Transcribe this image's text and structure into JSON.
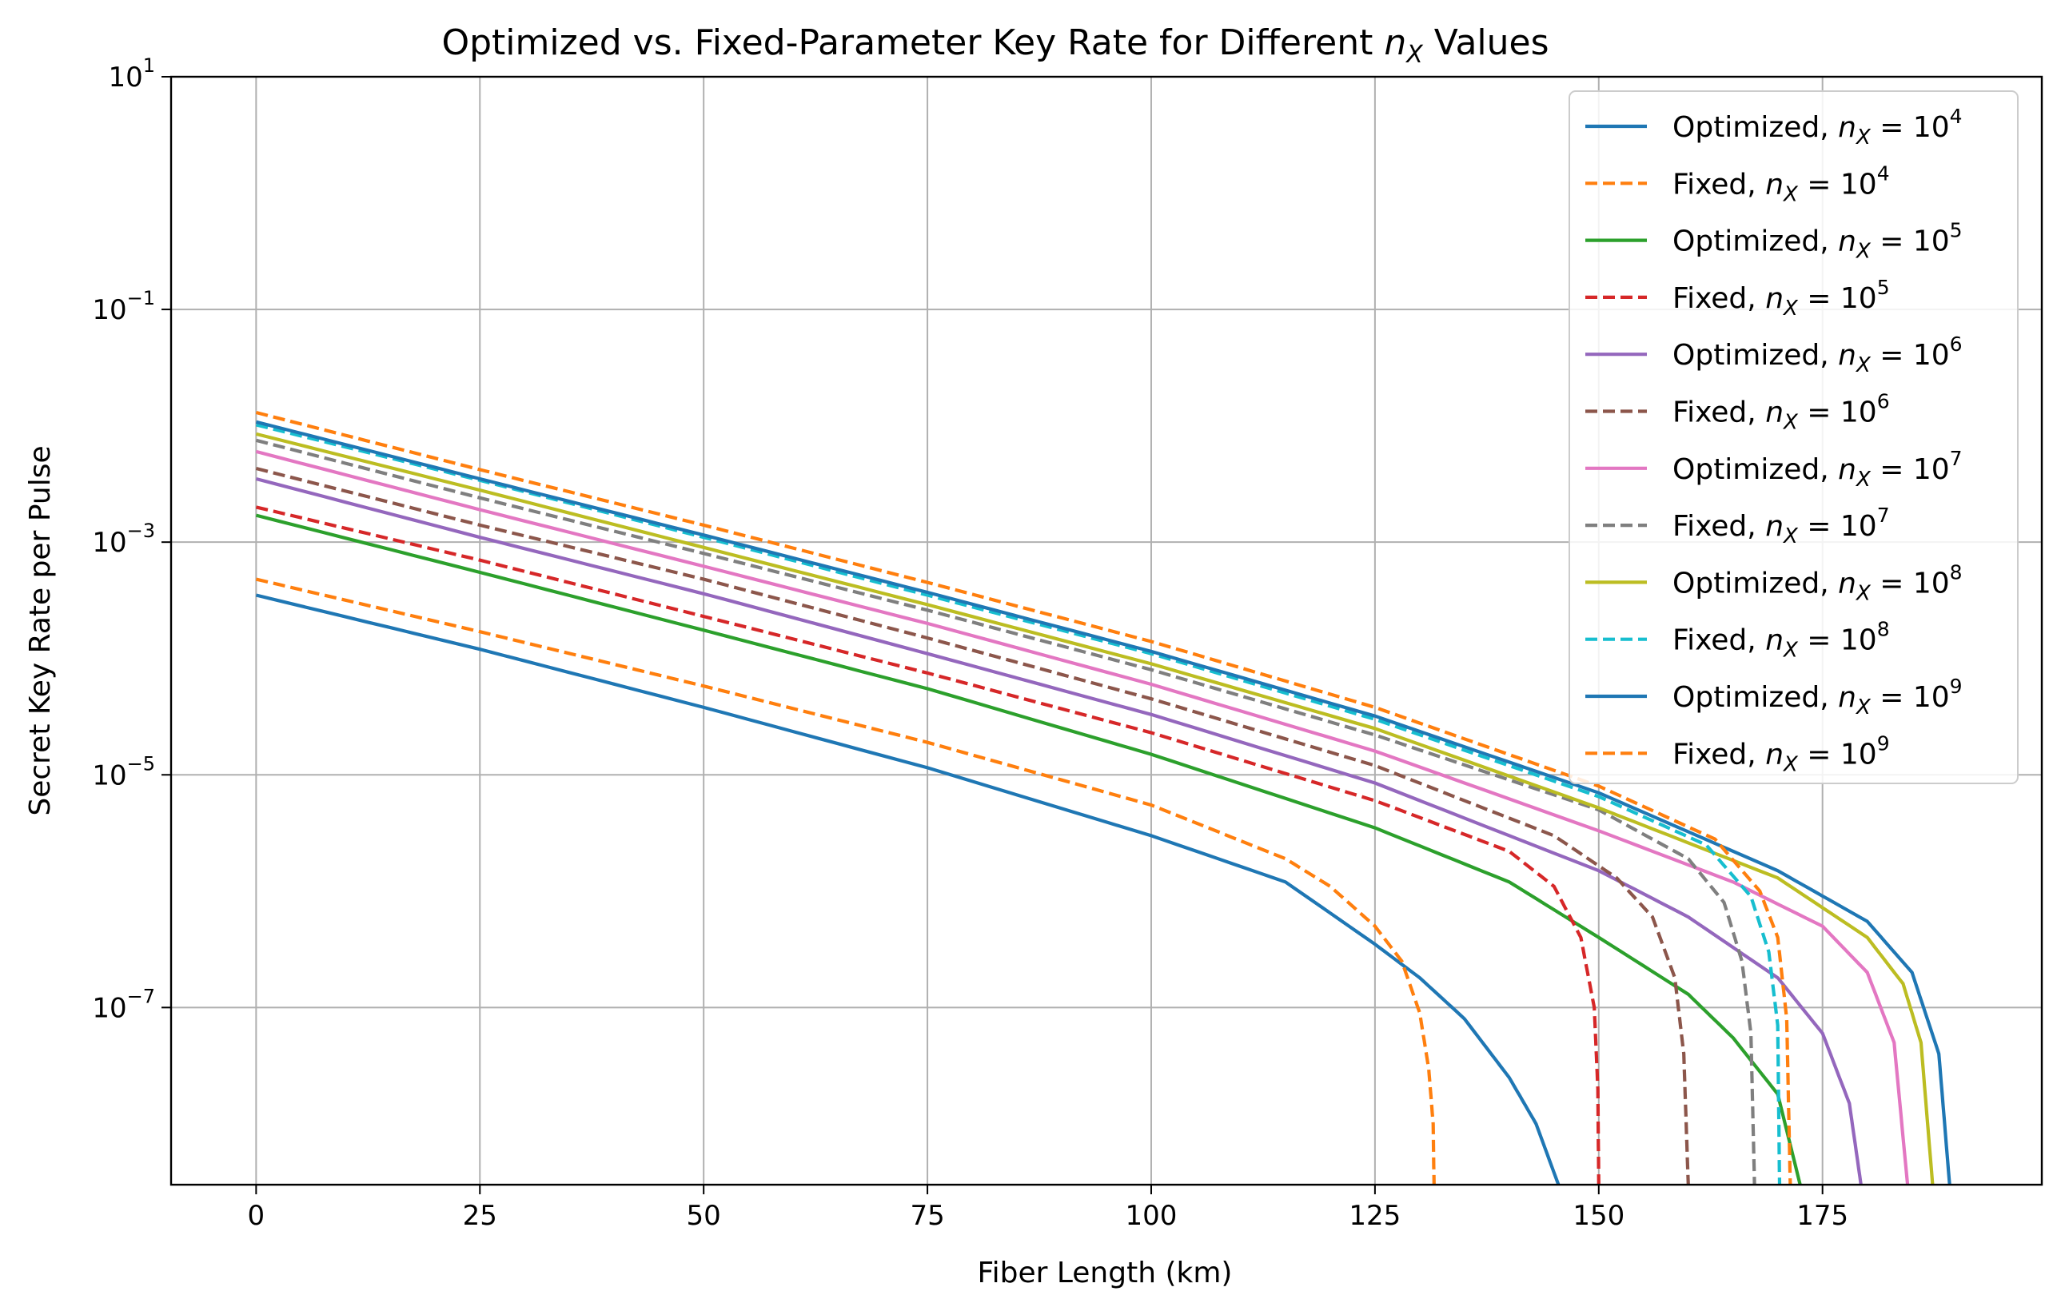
{
  "chart_data": {
    "type": "line",
    "title": "Optimized vs. Fixed-Parameter Key Rate for Different n_X Values",
    "title_parts": {
      "lead": "Optimized vs. Fixed-Parameter Key Rate for Different ",
      "symbol": "n",
      "subscript": "X",
      "tail": " Values"
    },
    "xlabel": "Fiber Length (km)",
    "ylabel": "Secret Key Rate per Pulse",
    "xlim": [
      -9.5,
      199.5
    ],
    "ylim": [
      3e-09,
      10
    ],
    "yscale": "log",
    "grid": true,
    "legend_position": "top-right",
    "x_ticks": [
      0,
      25,
      50,
      75,
      100,
      125,
      150,
      175
    ],
    "x_tick_labels": [
      "0",
      "25",
      "50",
      "75",
      "100",
      "125",
      "150",
      "175"
    ],
    "y_ticks": [
      {
        "value": 10,
        "base": "10",
        "exp": "1"
      },
      {
        "value": 0.1,
        "base": "10",
        "exp": "−1"
      },
      {
        "value": 0.001,
        "base": "10",
        "exp": "−3"
      },
      {
        "value": 1e-05,
        "base": "10",
        "exp": "−5"
      },
      {
        "value": 1e-07,
        "base": "10",
        "exp": "−7"
      }
    ],
    "series": [
      {
        "name": "Optimized, n_X = 10^4",
        "prefix": "Optimized, ",
        "exp": "4",
        "color": "#1f77b4",
        "dash": "solid",
        "points": [
          [
            0,
            0.00035
          ],
          [
            25,
            0.00012
          ],
          [
            50,
            3.8e-05
          ],
          [
            75,
            1.15e-05
          ],
          [
            100,
            3e-06
          ],
          [
            115,
            1.2e-06
          ],
          [
            125,
            3.5e-07
          ],
          [
            130,
            1.8e-07
          ],
          [
            135,
            8e-08
          ],
          [
            140,
            2.5e-08
          ],
          [
            143,
            1e-08
          ],
          [
            145.5,
            3e-09
          ]
        ]
      },
      {
        "name": "Fixed, n_X = 10^4",
        "prefix": "Fixed, ",
        "exp": "4",
        "color": "#ff7f0e",
        "dash": "dashed",
        "points": [
          [
            0,
            0.00048
          ],
          [
            25,
            0.00017
          ],
          [
            50,
            5.8e-05
          ],
          [
            75,
            1.9e-05
          ],
          [
            100,
            5.5e-06
          ],
          [
            115,
            1.9e-06
          ],
          [
            120,
            1.1e-06
          ],
          [
            125,
            5e-07
          ],
          [
            128,
            2.5e-07
          ],
          [
            130,
            9e-08
          ],
          [
            131,
            3e-08
          ],
          [
            131.5,
            1e-08
          ],
          [
            131.6,
            3e-09
          ]
        ]
      },
      {
        "name": "Optimized, n_X = 10^5",
        "prefix": "Optimized, ",
        "exp": "5",
        "color": "#2ca02c",
        "dash": "solid",
        "points": [
          [
            0,
            0.0017
          ],
          [
            25,
            0.00055
          ],
          [
            50,
            0.000175
          ],
          [
            75,
            5.5e-05
          ],
          [
            100,
            1.5e-05
          ],
          [
            125,
            3.5e-06
          ],
          [
            140,
            1.2e-06
          ],
          [
            150,
            4e-07
          ],
          [
            160,
            1.3e-07
          ],
          [
            165,
            5.5e-08
          ],
          [
            170,
            1.8e-08
          ],
          [
            172.5,
            3e-09
          ]
        ]
      },
      {
        "name": "Fixed, n_X = 10^5",
        "prefix": "Fixed, ",
        "exp": "5",
        "color": "#d62728",
        "dash": "dashed",
        "points": [
          [
            0,
            0.002
          ],
          [
            25,
            0.0007
          ],
          [
            50,
            0.00023
          ],
          [
            75,
            7.5e-05
          ],
          [
            100,
            2.3e-05
          ],
          [
            125,
            6e-06
          ],
          [
            140,
            2.2e-06
          ],
          [
            145,
            1.1e-06
          ],
          [
            148,
            4e-07
          ],
          [
            149.5,
            1e-07
          ],
          [
            149.9,
            2e-08
          ],
          [
            150,
            3e-09
          ]
        ]
      },
      {
        "name": "Optimized, n_X = 10^6",
        "prefix": "Optimized, ",
        "exp": "6",
        "color": "#9467bd",
        "dash": "solid",
        "points": [
          [
            0,
            0.0035
          ],
          [
            25,
            0.0011
          ],
          [
            50,
            0.00036
          ],
          [
            75,
            0.00011
          ],
          [
            100,
            3.3e-05
          ],
          [
            125,
            8.5e-06
          ],
          [
            150,
            1.5e-06
          ],
          [
            160,
            6e-07
          ],
          [
            170,
            1.8e-07
          ],
          [
            175,
            6e-08
          ],
          [
            178,
            1.5e-08
          ],
          [
            179.3,
            3e-09
          ]
        ]
      },
      {
        "name": "Fixed, n_X = 10^6",
        "prefix": "Fixed, ",
        "exp": "6",
        "color": "#8c564b",
        "dash": "dashed",
        "points": [
          [
            0,
            0.0043
          ],
          [
            25,
            0.0014
          ],
          [
            50,
            0.00048
          ],
          [
            75,
            0.00015
          ],
          [
            100,
            4.5e-05
          ],
          [
            125,
            1.2e-05
          ],
          [
            145,
            3e-06
          ],
          [
            152,
            1.3e-06
          ],
          [
            156,
            6e-07
          ],
          [
            158.5,
            1.8e-07
          ],
          [
            159.5,
            4e-08
          ],
          [
            160,
            3e-09
          ]
        ]
      },
      {
        "name": "Optimized, n_X = 10^7",
        "prefix": "Optimized, ",
        "exp": "7",
        "color": "#e377c2",
        "dash": "solid",
        "points": [
          [
            0,
            0.006
          ],
          [
            25,
            0.0019
          ],
          [
            50,
            0.00062
          ],
          [
            75,
            0.0002
          ],
          [
            100,
            6e-05
          ],
          [
            125,
            1.6e-05
          ],
          [
            150,
            3.3e-06
          ],
          [
            165,
            1.2e-06
          ],
          [
            175,
            5e-07
          ],
          [
            180,
            2e-07
          ],
          [
            183,
            5e-08
          ],
          [
            184.5,
            3e-09
          ]
        ]
      },
      {
        "name": "Fixed, n_X = 10^7",
        "prefix": "Fixed, ",
        "exp": "7",
        "color": "#7f7f7f",
        "dash": "dashed",
        "points": [
          [
            0,
            0.0075
          ],
          [
            25,
            0.0024
          ],
          [
            50,
            0.0008
          ],
          [
            75,
            0.00026
          ],
          [
            100,
            8e-05
          ],
          [
            125,
            2.2e-05
          ],
          [
            150,
            5e-06
          ],
          [
            160,
            1.9e-06
          ],
          [
            164,
            8e-07
          ],
          [
            166,
            2.5e-07
          ],
          [
            167,
            6e-08
          ],
          [
            167.4,
            3e-09
          ]
        ]
      },
      {
        "name": "Optimized, n_X = 10^8",
        "prefix": "Optimized, ",
        "exp": "8",
        "color": "#bcbd22",
        "dash": "solid",
        "points": [
          [
            0,
            0.0085
          ],
          [
            25,
            0.0028
          ],
          [
            50,
            0.0009
          ],
          [
            75,
            0.00029
          ],
          [
            100,
            9e-05
          ],
          [
            125,
            2.5e-05
          ],
          [
            150,
            5.2e-06
          ],
          [
            170,
            1.3e-06
          ],
          [
            180,
            4e-07
          ],
          [
            184,
            1.6e-07
          ],
          [
            186,
            5e-08
          ],
          [
            187.3,
            3e-09
          ]
        ]
      },
      {
        "name": "Fixed, n_X = 10^8",
        "prefix": "Fixed, ",
        "exp": "8",
        "color": "#17becf",
        "dash": "dashed",
        "points": [
          [
            0,
            0.0102
          ],
          [
            25,
            0.0034
          ],
          [
            50,
            0.0011
          ],
          [
            75,
            0.00035
          ],
          [
            100,
            0.00011
          ],
          [
            125,
            3e-05
          ],
          [
            150,
            6.5e-06
          ],
          [
            162,
            2.5e-06
          ],
          [
            167,
            9e-07
          ],
          [
            169,
            3e-07
          ],
          [
            170,
            7e-08
          ],
          [
            170.2,
            3e-09
          ]
        ]
      },
      {
        "name": "Optimized, n_X = 10^9",
        "prefix": "Optimized, ",
        "exp": "9",
        "color": "#1f77b4",
        "dash": "solid",
        "points": [
          [
            0,
            0.0108
          ],
          [
            25,
            0.0035
          ],
          [
            50,
            0.00115
          ],
          [
            75,
            0.00037
          ],
          [
            100,
            0.000115
          ],
          [
            125,
            3.2e-05
          ],
          [
            150,
            7e-06
          ],
          [
            170,
            1.5e-06
          ],
          [
            180,
            5.5e-07
          ],
          [
            185,
            2e-07
          ],
          [
            188,
            4e-08
          ],
          [
            189.2,
            3e-09
          ]
        ]
      },
      {
        "name": "Fixed, n_X = 10^9",
        "prefix": "Fixed, ",
        "exp": "9",
        "color": "#ff7f0e",
        "dash": "dashed",
        "points": [
          [
            0,
            0.013
          ],
          [
            25,
            0.0042
          ],
          [
            50,
            0.0014
          ],
          [
            75,
            0.00045
          ],
          [
            100,
            0.00014
          ],
          [
            125,
            3.8e-05
          ],
          [
            150,
            8e-06
          ],
          [
            163,
            2.8e-06
          ],
          [
            168,
            1e-06
          ],
          [
            170,
            4e-07
          ],
          [
            171,
            8e-08
          ],
          [
            171.4,
            3e-09
          ]
        ]
      }
    ]
  }
}
